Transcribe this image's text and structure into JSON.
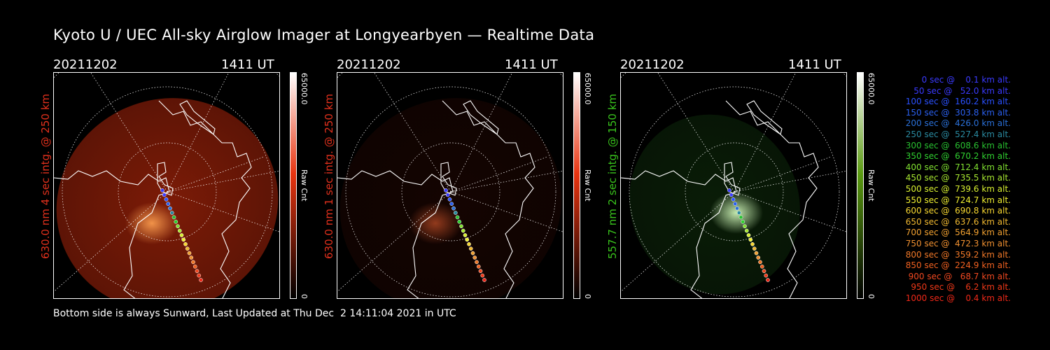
{
  "title": "Kyoto U / UEC All-sky Airglow Imager at Longyearbyen — Realtime Data",
  "footer": "Bottom side is always Sunward, Last Updated at Thu Dec  2 14:11:04 2021 in UTC",
  "panels": [
    {
      "date": "20211202",
      "time": "1411 UT",
      "side_label": "630.0 nm 4 sec intg. @ 250 km",
      "label_color": "#e0301c",
      "cbar_max": "65000.0",
      "cbar_unit": "Raw Cnt",
      "cbar_min": "0",
      "cbar_color": "#e83410",
      "glow": "#8a1e08",
      "glow_level": 0.9,
      "hot": "#ffa050"
    },
    {
      "date": "20211202",
      "time": "1411 UT",
      "side_label": "630.0 nm 1 sec intg. @ 250 km",
      "label_color": "#e0301c",
      "cbar_max": "65000.0",
      "cbar_unit": "Raw Cnt",
      "cbar_min": "0",
      "cbar_color": "#e83410",
      "glow": "#3a0c04",
      "glow_level": 0.35,
      "hot": "#a04020"
    },
    {
      "date": "20211202",
      "time": "1411 UT",
      "side_label": "557.7 nm 2 sec intg. @ 150 km",
      "label_color": "#39c41c",
      "cbar_max": "65000.0",
      "cbar_unit": "Raw Cnt",
      "cbar_min": "0",
      "cbar_color": "#5a9a10",
      "glow": "#10300c",
      "glow_level": 0.6,
      "hot": "#d8ffc0"
    }
  ],
  "legend": [
    {
      "text": "   0 sec @    0.1 km alt.",
      "color": "#3a3aff"
    },
    {
      "text": "  50 sec @   52.0 km alt.",
      "color": "#3a3aff"
    },
    {
      "text": " 100 sec @  160.2 km alt.",
      "color": "#2a50ff"
    },
    {
      "text": " 150 sec @  303.8 km alt.",
      "color": "#2a60f0"
    },
    {
      "text": " 200 sec @  426.0 km alt.",
      "color": "#2a70d8"
    },
    {
      "text": " 250 sec @  527.4 km alt.",
      "color": "#2a8aa0"
    },
    {
      "text": " 300 sec @  608.6 km alt.",
      "color": "#28c030"
    },
    {
      "text": " 350 sec @  670.2 km alt.",
      "color": "#30d030"
    },
    {
      "text": " 400 sec @  712.4 km alt.",
      "color": "#80e030"
    },
    {
      "text": " 450 sec @  735.5 km alt.",
      "color": "#a8e830"
    },
    {
      "text": " 500 sec @  739.6 km alt.",
      "color": "#d8f030"
    },
    {
      "text": " 550 sec @  724.7 km alt.",
      "color": "#f0f030"
    },
    {
      "text": " 600 sec @  690.8 km alt.",
      "color": "#f8d830"
    },
    {
      "text": " 650 sec @  637.6 km alt.",
      "color": "#f0b830"
    },
    {
      "text": " 700 sec @  564.9 km alt.",
      "color": "#f0a030"
    },
    {
      "text": " 750 sec @  472.3 km alt.",
      "color": "#f09030"
    },
    {
      "text": " 800 sec @  359.2 km alt.",
      "color": "#f07828"
    },
    {
      "text": " 850 sec @  224.9 km alt.",
      "color": "#f06020"
    },
    {
      "text": " 900 sec @   68.7 km alt.",
      "color": "#f04820"
    },
    {
      "text": " 950 sec @    6.2 km alt.",
      "color": "#f03818"
    },
    {
      "text": "1000 sec @    0.4 km alt.",
      "color": "#f02818"
    }
  ]
}
